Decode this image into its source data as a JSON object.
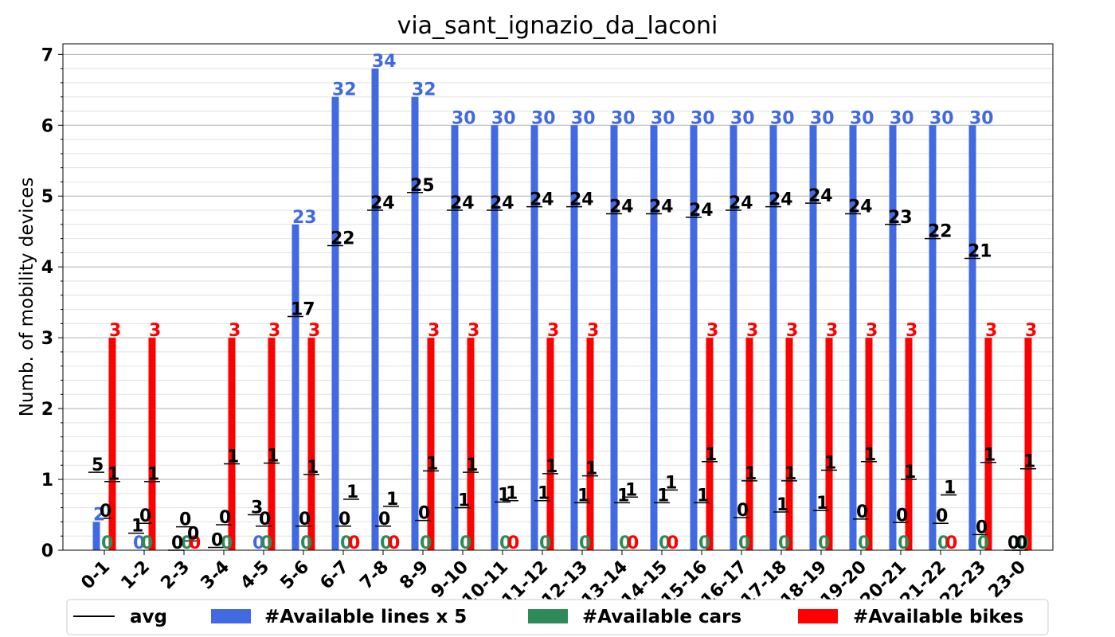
{
  "chart_data": {
    "type": "bar",
    "title": "via_sant_ignazio_da_laconi",
    "xlabel": "",
    "ylabel": "Numb. of mobility devices",
    "ylim": [
      0,
      7.15
    ],
    "yticks": [
      0,
      1,
      2,
      3,
      4,
      5,
      6,
      7
    ],
    "grid": true,
    "legend_position": "bottom",
    "categories": [
      "0-1",
      "1-2",
      "2-3",
      "3-4",
      "4-5",
      "5-6",
      "6-7",
      "7-8",
      "8-9",
      "9-10",
      "10-11",
      "11-12",
      "12-13",
      "13-14",
      "14-15",
      "15-16",
      "16-17",
      "17-18",
      "18-19",
      "19-20",
      "20-21",
      "21-22",
      "22-23",
      "23-0"
    ],
    "colors": {
      "lines": "#4169e1",
      "cars": "#2e8b57",
      "bikes": "#ff0000",
      "avg": "#000000"
    },
    "series": [
      {
        "name": "#Available lines x 5",
        "kind": "bar",
        "color": "#4169e1",
        "values": [
          0.4,
          0,
          0,
          0,
          0,
          4.6,
          6.4,
          6.8,
          6.4,
          6.0,
          6.0,
          6.0,
          6.0,
          6.0,
          6.0,
          6.0,
          6.0,
          6.0,
          6.0,
          6.0,
          6.0,
          6.0,
          6.0,
          0
        ],
        "labels": [
          "2",
          "0",
          "",
          "",
          "0",
          "23",
          "32",
          "34",
          "32",
          "30",
          "30",
          "30",
          "30",
          "30",
          "30",
          "30",
          "30",
          "30",
          "30",
          "30",
          "30",
          "30",
          "30",
          ""
        ]
      },
      {
        "name": "#Available cars",
        "kind": "bar",
        "color": "#2e8b57",
        "values": [
          0,
          0,
          0,
          0,
          0,
          0,
          0,
          0,
          0,
          0,
          0,
          0,
          0,
          0,
          0,
          0,
          0,
          0,
          0,
          0,
          0,
          0,
          0,
          0
        ],
        "labels": [
          "0",
          "0",
          "0",
          "0",
          "0",
          "0",
          "0",
          "0",
          "0",
          "0",
          "0",
          "0",
          "0",
          "0",
          "0",
          "0",
          "0",
          "0",
          "0",
          "0",
          "0",
          "0",
          "0",
          "0"
        ]
      },
      {
        "name": "#Available bikes",
        "kind": "bar",
        "color": "#ff0000",
        "values": [
          3,
          3,
          0,
          3,
          3,
          3,
          0,
          0,
          3,
          3,
          0,
          3,
          3,
          0,
          0,
          3,
          3,
          3,
          3,
          3,
          3,
          0,
          3,
          3
        ],
        "labels": [
          "3",
          "3",
          "0",
          "3",
          "3",
          "3",
          "0",
          "0",
          "3",
          "3",
          "0",
          "3",
          "3",
          "0",
          "0",
          "3",
          "3",
          "3",
          "3",
          "3",
          "3",
          "0",
          "3",
          "3"
        ]
      }
    ],
    "avg": {
      "name": "avg",
      "lines": {
        "values": [
          1.1,
          0.24,
          0.0,
          0.04,
          0.5,
          3.3,
          4.3,
          4.8,
          5.05,
          4.8,
          4.8,
          4.85,
          4.85,
          4.75,
          4.75,
          4.7,
          4.8,
          4.85,
          4.9,
          4.75,
          4.6,
          4.4,
          4.12,
          0.0
        ],
        "labels": [
          "5",
          "1",
          "0",
          "0",
          "3",
          "17",
          "22",
          "24",
          "25",
          "24",
          "24",
          "24",
          "24",
          "24",
          "24",
          "24",
          "24",
          "24",
          "24",
          "24",
          "23",
          "22",
          "21",
          "0"
        ]
      },
      "cars": {
        "values": [
          0.45,
          0.38,
          0.33,
          0.36,
          0.34,
          0.34,
          0.34,
          0.34,
          0.42,
          0.6,
          0.68,
          0.7,
          0.67,
          0.67,
          0.67,
          0.67,
          0.46,
          0.54,
          0.56,
          0.44,
          0.39,
          0.38,
          0.22,
          0.0
        ],
        "labels": [
          "0",
          "0",
          "0",
          "0",
          "0",
          "0",
          "0",
          "0",
          "0",
          "1",
          "1",
          "1",
          "1",
          "1",
          "1",
          "1",
          "0",
          "1",
          "1",
          "0",
          "0",
          "0",
          "0",
          "0"
        ]
      },
      "bikes": {
        "values": [
          0.97,
          0.97,
          0.13,
          1.22,
          1.23,
          1.07,
          0.72,
          0.62,
          1.12,
          1.1,
          0.7,
          1.08,
          1.05,
          0.75,
          0.85,
          1.25,
          0.98,
          0.98,
          1.13,
          1.25,
          1.0,
          0.78,
          1.24,
          1.15
        ],
        "labels": [
          "1",
          "1",
          "0",
          "1",
          "1",
          "1",
          "1",
          "1",
          "1",
          "1",
          "1",
          "1",
          "1",
          "1",
          "1",
          "1",
          "1",
          "1",
          "1",
          "1",
          "1",
          "1",
          "1",
          "1"
        ]
      }
    }
  }
}
